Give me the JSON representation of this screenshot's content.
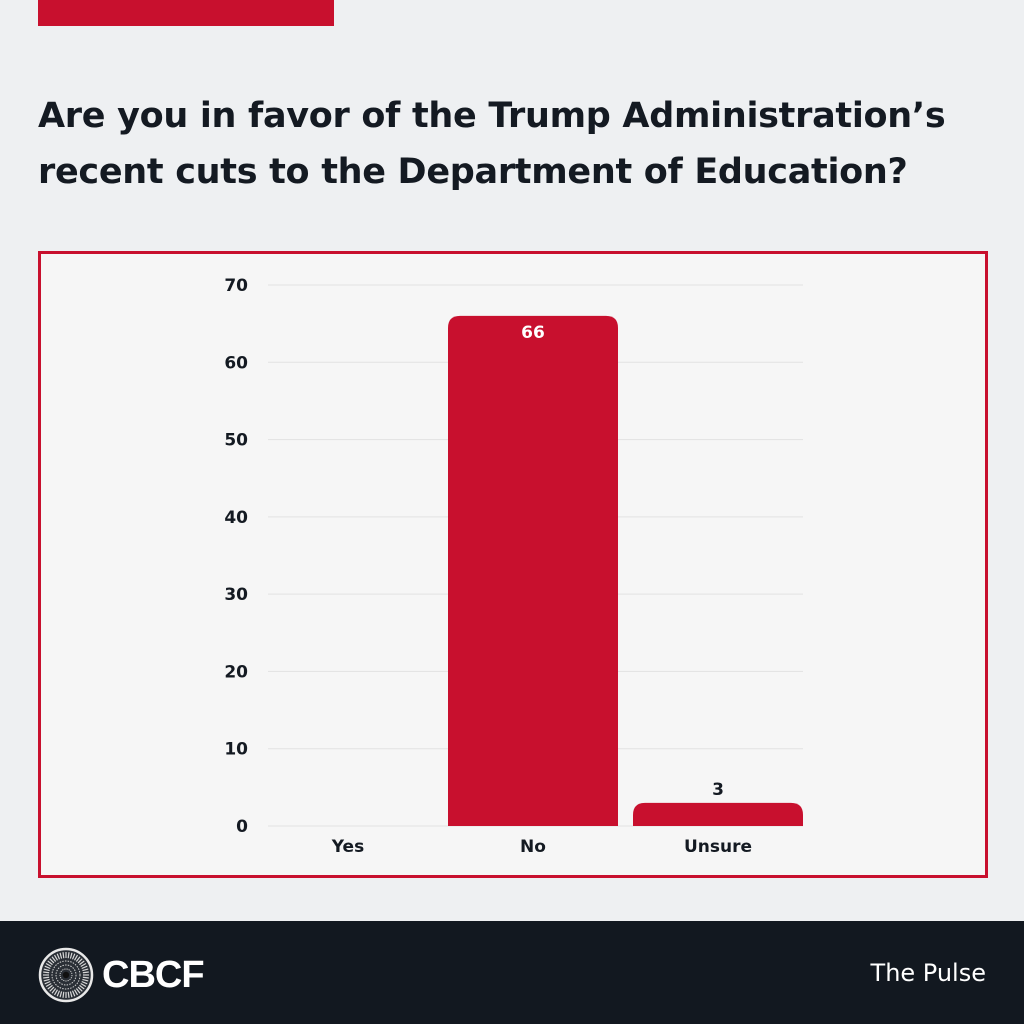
{
  "headline": {
    "line1": "Are you in favor of the Trump Administration’s",
    "line2": "recent cuts to the Department of Education?"
  },
  "colors": {
    "accent": "#c8102e",
    "text": "#141a22",
    "background": "#eef0f2",
    "footer": "#121820",
    "gridline": "#e2e2e2"
  },
  "chart_data": {
    "type": "bar",
    "title": "Are you in favor of the Trump Administration’s recent cuts to the Department of Education?",
    "categories": [
      "Yes",
      "No",
      "Unsure"
    ],
    "values": [
      0,
      66,
      3
    ],
    "data_labels": [
      "",
      "66",
      "3"
    ],
    "xlabel": "",
    "ylabel": "",
    "ylim": [
      0,
      70
    ],
    "yticks": [
      0,
      10,
      20,
      30,
      40,
      50,
      60,
      70
    ],
    "grid": true,
    "legend": "none",
    "bar_color": "#c8102e"
  },
  "footer": {
    "brand": "CBCF",
    "logo_icon": "seal-emblem-icon",
    "series_name": "The Pulse"
  }
}
